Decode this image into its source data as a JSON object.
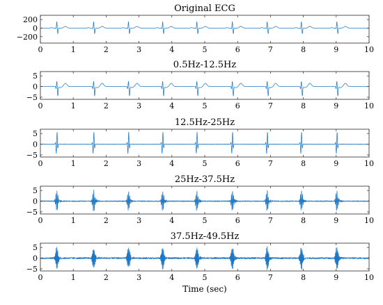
{
  "chart_data": [
    {
      "type": "line",
      "title": "Original ECG",
      "xlim": [
        0,
        10
      ],
      "ylim": [
        -350,
        300
      ],
      "xticks": [
        0,
        1,
        2,
        3,
        4,
        5,
        6,
        7,
        8,
        9,
        10
      ],
      "yticks": [
        200,
        0,
        -200
      ],
      "ytick_labels": [
        "200",
        "0",
        "−200"
      ],
      "color": "#1f77c4",
      "series": [
        {
          "beat_times": [
            0.5,
            1.62,
            2.68,
            3.72,
            4.76,
            5.84,
            6.9,
            7.94,
            9.02
          ],
          "r_peak": 150,
          "s_trough": -130,
          "t_wave": 40,
          "baseline": 0
        }
      ]
    },
    {
      "type": "line",
      "title": "0.5Hz-12.5Hz",
      "xlim": [
        0,
        10
      ],
      "ylim": [
        -6,
        7
      ],
      "xticks": [
        0,
        1,
        2,
        3,
        4,
        5,
        6,
        7,
        8,
        9,
        10
      ],
      "yticks": [
        5,
        0,
        -5
      ],
      "ytick_labels": [
        "5",
        "0",
        "−5"
      ],
      "color": "#1f77c4",
      "series": [
        {
          "beat_times": [
            0.5,
            1.62,
            2.68,
            3.72,
            4.76,
            5.84,
            6.9,
            7.94,
            9.02
          ],
          "r_peak": 2.5,
          "s_trough": -4.2,
          "t_wave": 1.5,
          "baseline": 0
        }
      ]
    },
    {
      "type": "line",
      "title": "12.5Hz-25Hz",
      "xlim": [
        0,
        10
      ],
      "ylim": [
        -6,
        7
      ],
      "xticks": [
        0,
        1,
        2,
        3,
        4,
        5,
        6,
        7,
        8,
        9,
        10
      ],
      "yticks": [
        5,
        0,
        -5
      ],
      "ytick_labels": [
        "5",
        "0",
        "−5"
      ],
      "color": "#1f77c4",
      "series": [
        {
          "beat_times": [
            0.5,
            1.62,
            2.68,
            3.72,
            4.76,
            5.84,
            6.9,
            7.94,
            9.02
          ],
          "r_peak": 6,
          "s_trough": -5,
          "t_wave": 0,
          "baseline": 0
        }
      ]
    },
    {
      "type": "line",
      "title": "25Hz-37.5Hz",
      "xlim": [
        0,
        10
      ],
      "ylim": [
        -6,
        7
      ],
      "xticks": [
        0,
        1,
        2,
        3,
        4,
        5,
        6,
        7,
        8,
        9,
        10
      ],
      "yticks": [
        5,
        0,
        -5
      ],
      "ytick_labels": [
        "5",
        "0",
        "−5"
      ],
      "color": "#1f77c4",
      "series": [
        {
          "beat_times": [
            0.5,
            1.62,
            2.68,
            3.72,
            4.76,
            5.84,
            6.9,
            7.94,
            9.02
          ],
          "r_peak": 5,
          "s_trough": -5,
          "t_wave": 0,
          "baseline": 0
        }
      ]
    },
    {
      "type": "line",
      "title": "37.5Hz-49.5Hz",
      "xlim": [
        0,
        10
      ],
      "ylim": [
        -6,
        7
      ],
      "xticks": [
        0,
        1,
        2,
        3,
        4,
        5,
        6,
        7,
        8,
        9,
        10
      ],
      "yticks": [
        5,
        0,
        -5
      ],
      "ytick_labels": [
        "5",
        "0",
        "−5"
      ],
      "xlabel": "Time (sec)",
      "color": "#1f77c4",
      "series": [
        {
          "beat_times": [
            0.5,
            1.62,
            2.68,
            3.72,
            4.76,
            5.84,
            6.9,
            7.94,
            9.02
          ],
          "r_peak": 5,
          "s_trough": -5,
          "t_wave": 0,
          "baseline": 0
        }
      ]
    }
  ]
}
